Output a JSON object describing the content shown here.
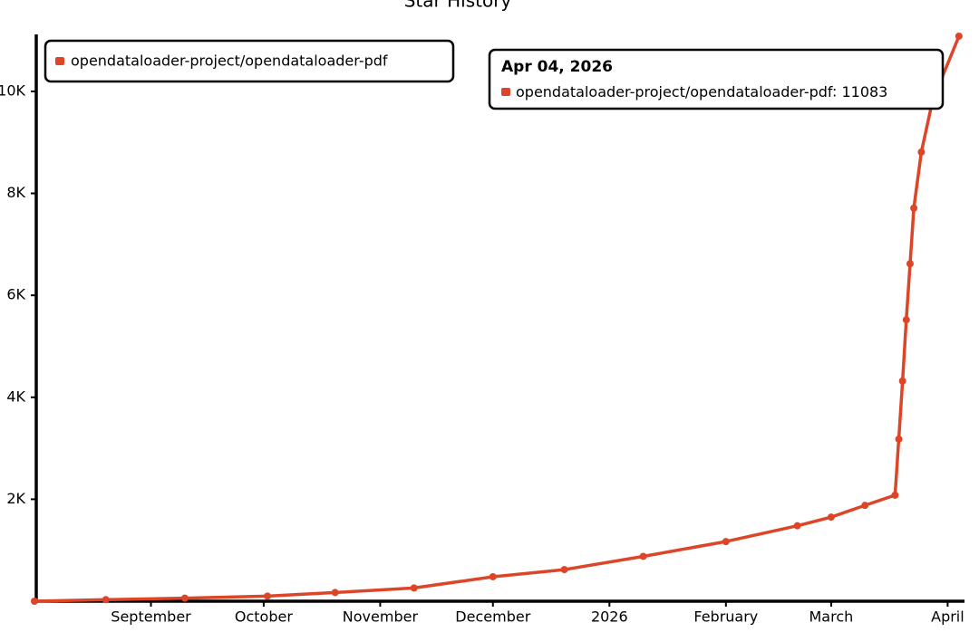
{
  "chart_data": {
    "type": "line",
    "title": "Star History",
    "x": [
      "2025-08-01",
      "2025-08-20",
      "2025-09-10",
      "2025-10-02",
      "2025-10-20",
      "2025-11-10",
      "2025-12-01",
      "2025-12-20",
      "2026-01-10",
      "2026-02-01",
      "2026-02-20",
      "2026-03-01",
      "2026-03-10",
      "2026-03-18",
      "2026-03-19",
      "2026-03-20",
      "2026-03-21",
      "2026-03-22",
      "2026-03-23",
      "2026-03-25",
      "2026-03-28",
      "2026-04-04"
    ],
    "series": [
      {
        "name": "opendataloader-project/opendataloader-pdf",
        "color": "#dd4528",
        "values": [
          0,
          30,
          60,
          100,
          170,
          260,
          480,
          620,
          880,
          1170,
          1480,
          1650,
          1880,
          2080,
          3180,
          4320,
          5520,
          6620,
          7710,
          8810,
          9820,
          11083
        ]
      }
    ],
    "xlim": [
      "2025-08-01",
      "2026-04-05"
    ],
    "xticks": [
      {
        "value": "2025-09-01",
        "label": "September"
      },
      {
        "value": "2025-10-01",
        "label": "October"
      },
      {
        "value": "2025-11-01",
        "label": "November"
      },
      {
        "value": "2025-12-01",
        "label": "December"
      },
      {
        "value": "2026-01-01",
        "label": "2026"
      },
      {
        "value": "2026-02-01",
        "label": "February"
      },
      {
        "value": "2026-03-01",
        "label": "March"
      },
      {
        "value": "2026-04-01",
        "label": "April"
      }
    ],
    "ylim": [
      0,
      11100
    ],
    "yticks": [
      {
        "value": 2000,
        "label": "2K"
      },
      {
        "value": 4000,
        "label": "4K"
      },
      {
        "value": 6000,
        "label": "6K"
      },
      {
        "value": 8000,
        "label": "8K"
      },
      {
        "value": 10000,
        "label": "10K"
      }
    ],
    "legend": "top-left",
    "tooltip": {
      "date": "Apr 04, 2026"
    }
  }
}
